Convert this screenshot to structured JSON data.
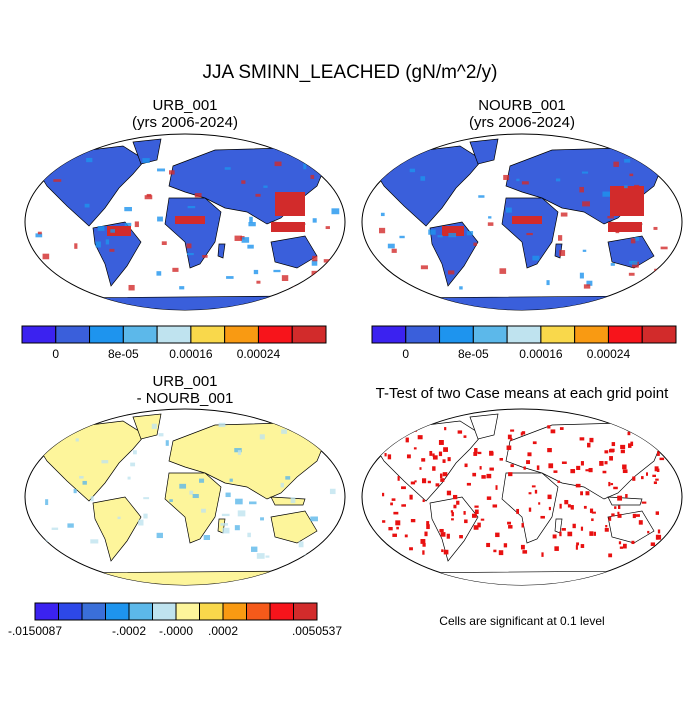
{
  "title": "JJA SMINN_LEACHED (gN/m^2/y)",
  "panels": [
    {
      "title": "URB_001",
      "subtitle": "(yrs 2006-2024)",
      "colorbar": {
        "colors": [
          "#3b22f0",
          "#3a5fdb",
          "#1e94ee",
          "#5cb8ea",
          "#bfe3ef",
          "#f9d84b",
          "#f99a12",
          "#f7141b",
          "#d22b2b"
        ],
        "labels": [
          "0",
          "8e-05",
          "0.00016",
          "0.00024"
        ]
      }
    },
    {
      "title": "NOURB_001",
      "subtitle": "(yrs 2006-2024)",
      "colorbar": {
        "colors": [
          "#3b22f0",
          "#3a5fdb",
          "#1e94ee",
          "#5cb8ea",
          "#bfe3ef",
          "#f9d84b",
          "#f99a12",
          "#f7141b",
          "#d22b2b"
        ],
        "labels": [
          "0",
          "8e-05",
          "0.00016",
          "0.00024"
        ]
      }
    },
    {
      "title": "URB_001",
      "subtitle": "- NOURB_001",
      "colorbar": {
        "colors": [
          "#3b22f0",
          "#2d48e8",
          "#3a6fd9",
          "#1e94ee",
          "#5cb8ea",
          "#bfe3ef",
          "#fdf59b",
          "#f9d84b",
          "#f99a12",
          "#f55a1a",
          "#f7141b",
          "#d22b2b"
        ],
        "labels": [
          "-.0150087",
          "-.0002",
          "-.0000",
          ".0002",
          ".0050537"
        ]
      }
    },
    {
      "title": "T-Test of two Case means at each grid point",
      "note": "Cells are significant at 0.1 level"
    }
  ]
}
